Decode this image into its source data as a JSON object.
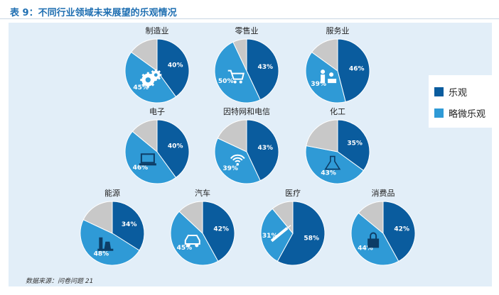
{
  "title": "表 9：不同行业领域未来展望的乐观情况",
  "source": "数据来源：问卷问题 21",
  "colors": {
    "optimistic": "#0a5c9e",
    "slightly_optimistic": "#2f9ad6",
    "other": "#c8c8c8"
  },
  "legend": [
    {
      "label": "乐观",
      "color": "#0a5c9e"
    },
    {
      "label": "略微乐观",
      "color": "#2f9ad6"
    }
  ],
  "chart_data": {
    "type": "pie",
    "series_names": [
      "乐观",
      "略微乐观"
    ],
    "pies": [
      {
        "name": "制造业",
        "optimistic": 40,
        "slightly_optimistic": 45,
        "icon": "gears-icon"
      },
      {
        "name": "零售业",
        "optimistic": 43,
        "slightly_optimistic": 50,
        "icon": "shopping-cart-icon"
      },
      {
        "name": "服务业",
        "optimistic": 46,
        "slightly_optimistic": 39,
        "icon": "service-people-icon"
      },
      {
        "name": "电子",
        "optimistic": 40,
        "slightly_optimistic": 46,
        "icon": "laptop-icon"
      },
      {
        "name": "因特网和电信",
        "optimistic": 43,
        "slightly_optimistic": 39,
        "icon": "wifi-icon"
      },
      {
        "name": "化工",
        "optimistic": 35,
        "slightly_optimistic": 43,
        "icon": "flask-icon"
      },
      {
        "name": "能源",
        "optimistic": 34,
        "slightly_optimistic": 48,
        "icon": "power-plant-icon"
      },
      {
        "name": "汽车",
        "optimistic": 42,
        "slightly_optimistic": 45,
        "icon": "car-icon"
      },
      {
        "name": "医疗",
        "optimistic": 58,
        "slightly_optimistic": 31,
        "icon": "syringe-icon"
      },
      {
        "name": "消费品",
        "optimistic": 42,
        "slightly_optimistic": 44,
        "icon": "shopping-bag-icon"
      }
    ]
  }
}
